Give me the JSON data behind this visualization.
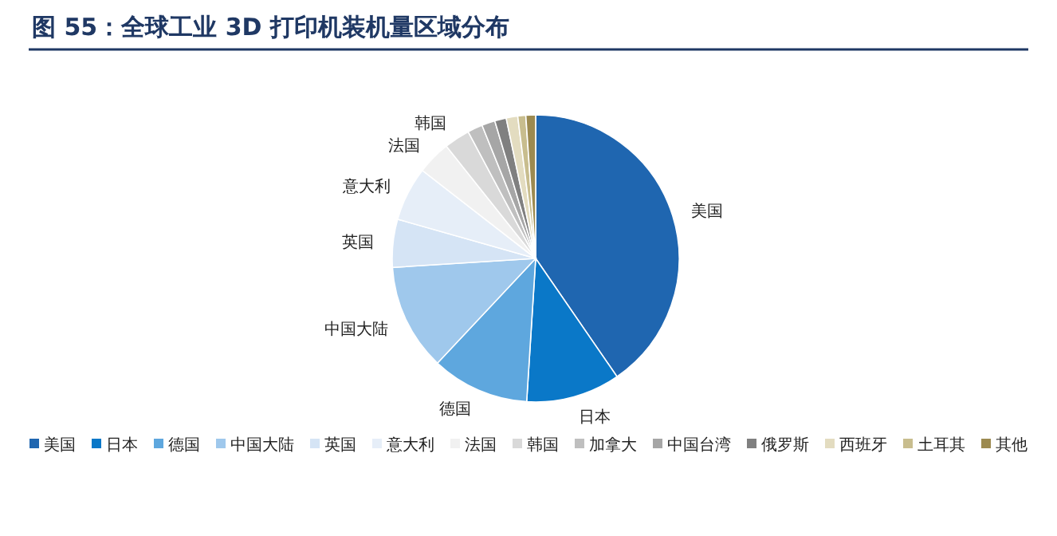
{
  "chart_data": {
    "type": "pie",
    "title": "图 55：全球工业 3D 打印机装机量区域分布",
    "categories": [
      "美国",
      "日本",
      "德国",
      "中国大陆",
      "英国",
      "意大利",
      "法国",
      "韩国",
      "加拿大",
      "中国台湾",
      "俄罗斯",
      "西班牙",
      "土耳其",
      "其他"
    ],
    "values": [
      40.4,
      10.6,
      11.0,
      12.0,
      5.4,
      6.1,
      3.8,
      2.9,
      1.7,
      1.5,
      1.3,
      1.3,
      0.9,
      1.1
    ],
    "colors": [
      "#1f66b0",
      "#0a78c8",
      "#5ea7de",
      "#9fc8ec",
      "#d5e4f5",
      "#e6eef8",
      "#f1f1f1",
      "#d9d9d9",
      "#bfbfbf",
      "#a6a6a6",
      "#808080",
      "#e3dcc0",
      "#c8bd8e",
      "#9c8a50"
    ],
    "legend": "bottom"
  }
}
